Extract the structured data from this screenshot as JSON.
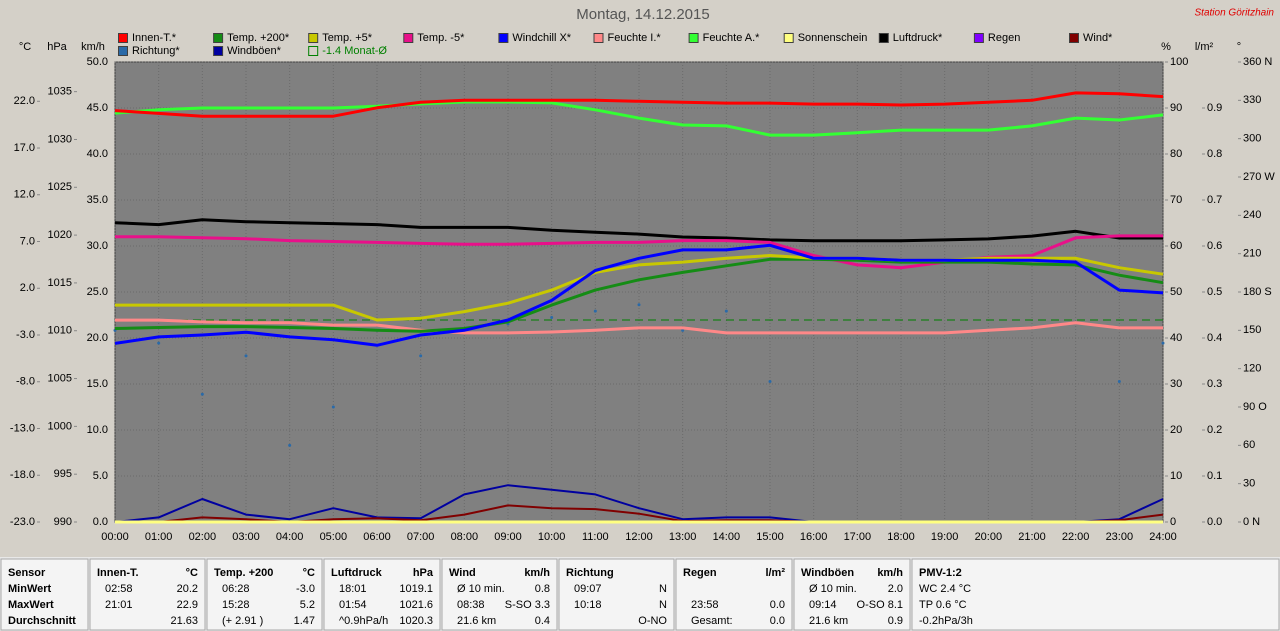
{
  "chart_data": {
    "type": "line",
    "title": "Montag, 14.12.2015",
    "station": "Station Göritzhain",
    "categories": [
      "00:00",
      "01:00",
      "02:00",
      "03:00",
      "04:00",
      "05:00",
      "06:00",
      "07:00",
      "08:00",
      "09:00",
      "10:00",
      "11:00",
      "12:00",
      "13:00",
      "14:00",
      "15:00",
      "16:00",
      "17:00",
      "18:00",
      "19:00",
      "20:00",
      "21:00",
      "22:00",
      "23:00",
      "24:00"
    ],
    "grid": true,
    "grid_axis": 2,
    "axes": [
      {
        "unit": "°C",
        "side": "left",
        "lim": [
          -23,
          26.2
        ],
        "ticks": [
          {
            "value": -23,
            "label": "-23.0"
          },
          {
            "value": -18,
            "label": "-18.0"
          },
          {
            "value": -13,
            "label": "-13.0"
          },
          {
            "value": -8,
            "label": "-8.0"
          },
          {
            "value": -3,
            "label": "-3.0"
          },
          {
            "value": 2,
            "label": "2.0"
          },
          {
            "value": 7,
            "label": "7.0"
          },
          {
            "value": 12,
            "label": "12.0"
          },
          {
            "value": 17,
            "label": "17.0"
          },
          {
            "value": 22,
            "label": "22.0"
          }
        ]
      },
      {
        "unit": "hPa",
        "side": "left",
        "lim": [
          990,
          1038.1
        ],
        "ticks": [
          990,
          995,
          1000,
          1005,
          1010,
          1015,
          1020,
          1025,
          1030,
          1035
        ]
      },
      {
        "unit": "km/h",
        "side": "left",
        "lim": [
          0,
          50
        ],
        "ticks": [
          {
            "value": 0,
            "label": "0.0"
          },
          {
            "value": 5,
            "label": "5.0"
          },
          {
            "value": 10,
            "label": "10.0"
          },
          {
            "value": 15,
            "label": "15.0"
          },
          {
            "value": 20,
            "label": "20.0"
          },
          {
            "value": 25,
            "label": "25.0"
          },
          {
            "value": 30,
            "label": "30.0"
          },
          {
            "value": 35,
            "label": "35.0"
          },
          {
            "value": 40,
            "label": "40.0"
          },
          {
            "value": 45,
            "label": "45.0"
          },
          {
            "value": 50,
            "label": "50.0"
          }
        ]
      },
      {
        "unit": "%",
        "side": "right",
        "lim": [
          0,
          100
        ],
        "ticks": [
          0,
          10,
          20,
          30,
          40,
          50,
          60,
          70,
          80,
          90,
          100
        ]
      },
      {
        "unit": "l/m²",
        "side": "right",
        "lim": [
          0,
          1
        ],
        "ticks": [
          {
            "value": 0,
            "label": "0.0"
          },
          0.1,
          0.2,
          0.3,
          0.4,
          0.5,
          0.6,
          0.7,
          0.8,
          0.9
        ]
      },
      {
        "unit": "°",
        "side": "right",
        "lim": [
          0,
          360
        ],
        "ticks": [
          {
            "value": 0,
            "label": "0 N"
          },
          30,
          60,
          {
            "value": 90,
            "label": "90 O"
          },
          120,
          150,
          {
            "value": 180,
            "label": "180 S"
          },
          210,
          240,
          {
            "value": 270,
            "label": "270 W"
          },
          300,
          330,
          {
            "value": 360,
            "label": "360 N"
          }
        ]
      }
    ],
    "series": [
      {
        "name": "Innen-T.*",
        "color": "#ff0000",
        "axis": 0,
        "values": [
          21.0,
          20.7,
          20.4,
          20.4,
          20.4,
          20.4,
          21.3,
          21.9,
          22.1,
          22.1,
          22.1,
          22.1,
          22.0,
          21.9,
          21.8,
          21.8,
          21.7,
          21.7,
          21.6,
          21.7,
          21.9,
          22.1,
          22.9,
          22.8,
          22.5
        ]
      },
      {
        "name": "Temp. +200*",
        "color": "#158c15",
        "axis": 0,
        "values": [
          -2.3,
          -2.2,
          -2.1,
          -2.1,
          -2.2,
          -2.3,
          -2.5,
          -2.6,
          -2.3,
          -1.6,
          0.2,
          1.8,
          2.9,
          3.7,
          4.4,
          5.1,
          5.1,
          5.0,
          4.8,
          4.8,
          4.8,
          4.6,
          4.5,
          3.4,
          2.6
        ]
      },
      {
        "name": "Temp. +5*",
        "color": "#c8c800",
        "axis": 0,
        "values": [
          0.2,
          0.2,
          0.2,
          0.2,
          0.2,
          0.2,
          -1.4,
          -1.2,
          -0.5,
          0.4,
          1.8,
          3.7,
          4.5,
          4.8,
          5.2,
          5.5,
          5.2,
          5.2,
          5.0,
          5.0,
          5.2,
          5.2,
          5.2,
          4.2,
          3.5
        ]
      },
      {
        "name": "Temp. -5*",
        "color": "#e8108a",
        "axis": 0,
        "values": [
          7.5,
          7.5,
          7.4,
          7.3,
          7.1,
          7.0,
          6.9,
          6.8,
          6.7,
          6.7,
          6.8,
          6.9,
          6.9,
          7.1,
          7.1,
          6.9,
          5.5,
          4.5,
          4.2,
          4.8,
          5.3,
          5.5,
          7.4,
          7.6,
          7.6
        ]
      },
      {
        "name": "Windchill X*",
        "color": "#0000ff",
        "axis": 0,
        "values": [
          -3.9,
          -3.2,
          -3.0,
          -2.7,
          -3.2,
          -3.5,
          -4.1,
          -3.0,
          -2.5,
          -1.4,
          0.7,
          3.9,
          5.2,
          6.1,
          6.1,
          6.6,
          5.2,
          5.2,
          5.0,
          5.0,
          5.0,
          5.0,
          4.8,
          1.8,
          1.5
        ]
      },
      {
        "name": "Feuchte I.*",
        "color": "#ff8888",
        "axis": 3,
        "values": [
          43.9,
          43.9,
          43.5,
          43.3,
          43.3,
          42.8,
          42.8,
          41.7,
          41.1,
          41.1,
          41.3,
          41.7,
          42.2,
          42.2,
          41.1,
          41.1,
          41.1,
          41.1,
          41.1,
          41.1,
          41.7,
          42.2,
          43.3,
          42.2,
          42.2
        ]
      },
      {
        "name": "Feuchte A.*",
        "color": "#33ff33",
        "axis": 3,
        "values": [
          88.9,
          89.6,
          90.0,
          90.0,
          90.0,
          90.0,
          90.4,
          90.9,
          91.3,
          91.3,
          91.1,
          89.6,
          87.8,
          86.3,
          86.1,
          84.1,
          84.1,
          84.6,
          85.2,
          85.2,
          85.2,
          86.1,
          87.8,
          87.4,
          88.5
        ]
      },
      {
        "name": "Sonnenschein",
        "color": "#ffff80",
        "axis": 2,
        "values": [
          0,
          0,
          0,
          0,
          0,
          0,
          0,
          0,
          0,
          0,
          0,
          0,
          0,
          0,
          0,
          0,
          0,
          0,
          0,
          0,
          0,
          0,
          0,
          0,
          0
        ]
      },
      {
        "name": "Luftdruck*",
        "color": "#000000",
        "axis": 1,
        "values": [
          1021.3,
          1021.1,
          1021.6,
          1021.4,
          1021.3,
          1021.2,
          1021.1,
          1020.8,
          1020.8,
          1020.8,
          1020.5,
          1020.3,
          1020.1,
          1019.8,
          1019.7,
          1019.5,
          1019.4,
          1019.4,
          1019.4,
          1019.5,
          1019.6,
          1019.9,
          1020.4,
          1019.7,
          1019.7
        ]
      },
      {
        "name": "Regen",
        "color": "#8000ff",
        "axis": 4,
        "values": [
          0,
          0,
          0,
          0,
          0,
          0,
          0,
          0,
          0,
          0,
          0,
          0,
          0,
          0,
          0,
          0,
          0,
          0,
          0,
          0,
          0,
          0,
          0,
          0,
          0
        ]
      },
      {
        "name": "Wind*",
        "color": "#800000",
        "axis": 2,
        "values": [
          0,
          0,
          0.5,
          0.3,
          0,
          0.3,
          0.4,
          0.2,
          0.8,
          1.8,
          1.5,
          1.4,
          0.9,
          0.1,
          0.2,
          0.2,
          0,
          0,
          0,
          0,
          0,
          0,
          0,
          0.2,
          0.8
        ]
      },
      {
        "name": "Richtung*",
        "color": "#2a6aa8",
        "axis": 5,
        "kind": "dots",
        "values": [
          150,
          140,
          100,
          130,
          60,
          90,
          150,
          130,
          150,
          155,
          160,
          165,
          170,
          150,
          165,
          110,
          null,
          null,
          null,
          null,
          null,
          null,
          null,
          110,
          140
        ]
      },
      {
        "name": "Windböen*",
        "color": "#0000a0",
        "axis": 2,
        "values": [
          0,
          0.5,
          2.5,
          0.8,
          0.3,
          1.5,
          0.5,
          0.4,
          3.0,
          4.0,
          3.5,
          3.0,
          1.5,
          0.3,
          0.5,
          0.5,
          0,
          0,
          0,
          0,
          0,
          0,
          0,
          0.3,
          2.5
        ]
      },
      {
        "name": "-1.4 Monat-Ø",
        "color": "#008000",
        "axis": 0,
        "kind": "dashed",
        "value": -1.4
      }
    ],
    "stats": {
      "row_labels": [
        "Sensor",
        "MinWert",
        "MaxWert",
        "Durchschnitt"
      ],
      "columns": [
        {
          "header": "Innen-T.",
          "unit": "°C",
          "rows": [
            {
              "l": "02:58",
              "r": "20.2"
            },
            {
              "l": "21:01",
              "r": "22.9"
            },
            {
              "r": "21.63"
            }
          ]
        },
        {
          "header": "Temp. +200",
          "unit": "°C",
          "rows": [
            {
              "l": "06:28",
              "r": "-3.0"
            },
            {
              "l": "15:28",
              "r": "5.2"
            },
            {
              "l": "(+ 2.91 )",
              "r": "1.47"
            }
          ]
        },
        {
          "header": "Luftdruck",
          "unit": "hPa",
          "rows": [
            {
              "l": "18:01",
              "r": "1019.1"
            },
            {
              "l": "01:54",
              "r": "1021.6"
            },
            {
              "l": "^0.9hPa/h",
              "r": "1020.3"
            }
          ]
        },
        {
          "header": "Wind",
          "unit": "km/h",
          "rows": [
            {
              "l": "Ø 10 min.",
              "r": "0.8"
            },
            {
              "l": "08:38",
              "r": "S-SO 3.3"
            },
            {
              "l": "21.6 km",
              "r": "0.4"
            }
          ]
        },
        {
          "header": "Richtung",
          "rows": [
            {
              "l": "09:07",
              "r": "N"
            },
            {
              "l": "10:18",
              "r": "N"
            },
            {
              "r": "O-NO"
            }
          ]
        },
        {
          "header": "Regen",
          "unit": "l/m²",
          "rows": [
            null,
            {
              "l": "23:58",
              "r": "0.0"
            },
            {
              "l": "Gesamt:",
              "r": "0.0"
            }
          ]
        },
        {
          "header": "Windböen",
          "unit": "km/h",
          "rows": [
            {
              "l": "Ø 10 min.",
              "r": "2.0"
            },
            {
              "l": "09:14",
              "r": "O-SO 8.1"
            },
            {
              "l": "21.6 km",
              "r": "0.9"
            }
          ]
        },
        {
          "header": "PMV-1:2",
          "rows": [
            {
              "l": "WC 2.4 °C"
            },
            {
              "l": "TP 0.6 °C"
            },
            {
              "l": "-0.2hPa/3h"
            }
          ]
        }
      ]
    }
  }
}
